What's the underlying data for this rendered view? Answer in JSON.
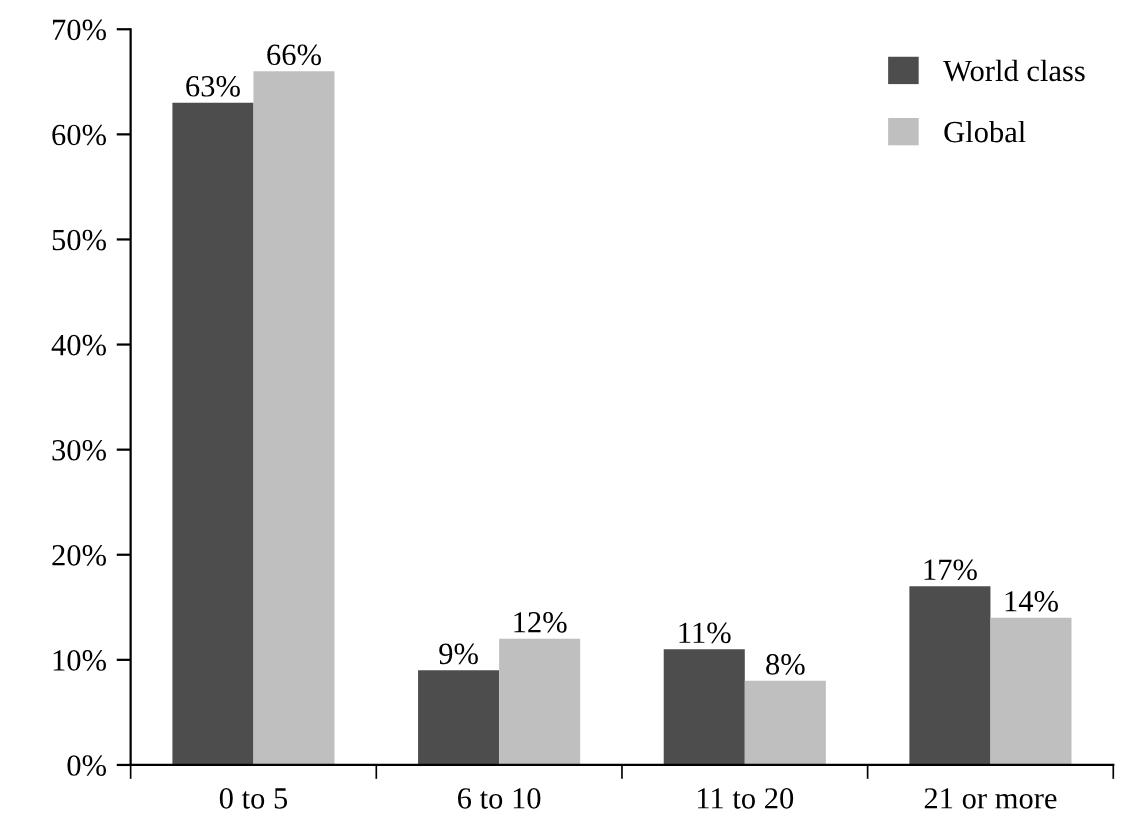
{
  "chart_data": {
    "type": "bar",
    "categories": [
      "0 to 5",
      "6 to 10",
      "11 to 20",
      "21 or more"
    ],
    "series": [
      {
        "name": "World class",
        "color": "#4d4d4d",
        "values": [
          63,
          9,
          11,
          17
        ],
        "value_labels": [
          "63%",
          "9%",
          "11%",
          "17%"
        ]
      },
      {
        "name": "Global",
        "color": "#bfbfbf",
        "values": [
          66,
          12,
          8,
          14
        ],
        "value_labels": [
          "66%",
          "12%",
          "8%",
          "14%"
        ]
      }
    ],
    "ylim": [
      0,
      70
    ],
    "yticks": [
      {
        "value": 0,
        "label": "0%"
      },
      {
        "value": 10,
        "label": "10%"
      },
      {
        "value": 20,
        "label": "20%"
      },
      {
        "value": 30,
        "label": "30%"
      },
      {
        "value": 40,
        "label": "40%"
      },
      {
        "value": 50,
        "label": "50%"
      },
      {
        "value": 60,
        "label": "60%"
      },
      {
        "value": 70,
        "label": "70%"
      }
    ],
    "grid": false,
    "legend": "top right"
  }
}
